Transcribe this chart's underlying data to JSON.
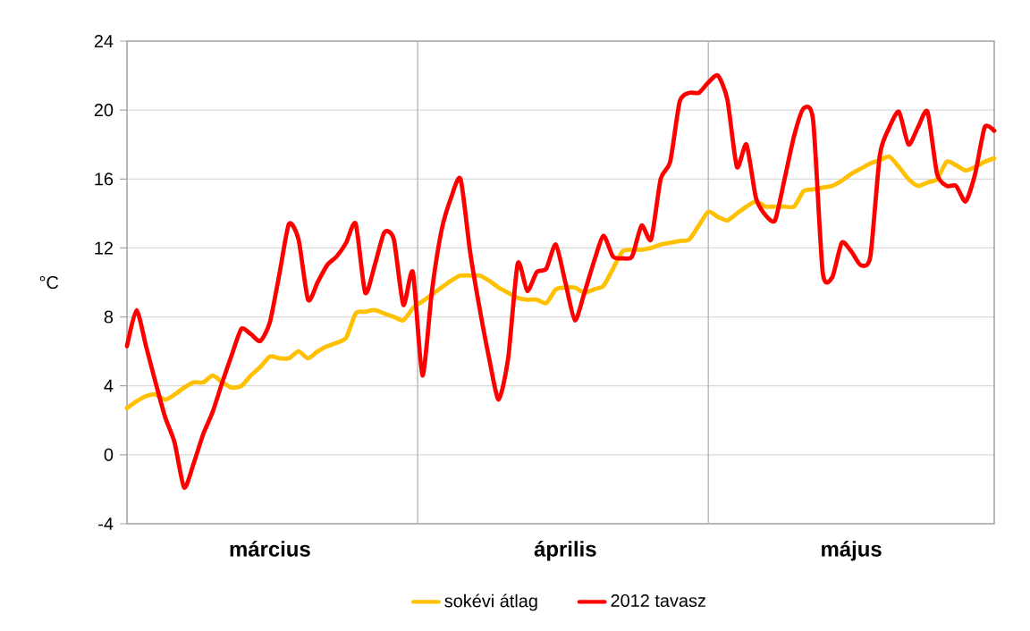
{
  "chart_data": {
    "type": "line",
    "ylabel": "°C",
    "ylim": [
      -4,
      24
    ],
    "yticks": [
      -4,
      0,
      4,
      8,
      12,
      16,
      20,
      24
    ],
    "categories": [
      null,
      null,
      null,
      null,
      null,
      null,
      null,
      null,
      null,
      null,
      null,
      null,
      null,
      null,
      null,
      "március",
      null,
      null,
      null,
      null,
      null,
      null,
      null,
      null,
      null,
      null,
      null,
      null,
      null,
      null,
      null,
      null,
      null,
      null,
      null,
      null,
      null,
      null,
      null,
      null,
      null,
      null,
      null,
      null,
      null,
      null,
      "április",
      null,
      null,
      null,
      null,
      null,
      null,
      null,
      null,
      null,
      null,
      null,
      null,
      null,
      null,
      null,
      null,
      null,
      null,
      null,
      null,
      null,
      null,
      null,
      null,
      null,
      null,
      null,
      null,
      null,
      "május",
      null,
      null,
      null,
      null,
      null,
      null,
      null,
      null,
      null,
      null,
      null,
      null,
      null,
      null,
      null
    ],
    "grid": "y",
    "legend": "bottom",
    "marker": "none",
    "line_style": "solid",
    "series": [
      {
        "name": "sokévi átlag",
        "color": "#ffc000",
        "values": [
          2.7,
          3.1,
          3.4,
          3.5,
          3.2,
          3.5,
          3.9,
          4.2,
          4.2,
          4.6,
          4.2,
          3.9,
          4.0,
          4.6,
          5.1,
          5.7,
          5.6,
          5.6,
          6.0,
          5.6,
          6.0,
          6.3,
          6.5,
          6.8,
          8.2,
          8.3,
          8.4,
          8.2,
          8.0,
          7.8,
          8.5,
          8.9,
          9.3,
          9.7,
          10.1,
          10.4,
          10.4,
          10.4,
          10.1,
          9.7,
          9.4,
          9.1,
          9.0,
          9.0,
          8.8,
          9.6,
          9.7,
          9.7,
          9.4,
          9.6,
          9.8,
          10.8,
          11.8,
          11.9,
          11.9,
          12.0,
          12.2,
          12.3,
          12.4,
          12.5,
          13.3,
          14.1,
          13.8,
          13.6,
          14.0,
          14.4,
          14.7,
          14.4,
          14.4,
          14.4,
          14.4,
          15.3,
          15.4,
          15.5,
          15.6,
          15.9,
          16.3,
          16.6,
          16.9,
          17.1,
          17.3,
          16.7,
          16.0,
          15.6,
          15.8,
          16.0,
          17.0,
          16.8,
          16.5,
          16.7,
          17.0,
          17.2
        ]
      },
      {
        "name": "2012 tavasz",
        "color": "#ff0000",
        "values": [
          6.3,
          8.4,
          6.3,
          4.2,
          2.2,
          0.7,
          -1.9,
          -0.5,
          1.2,
          2.5,
          4.2,
          5.8,
          7.3,
          7.0,
          6.6,
          7.7,
          10.5,
          13.4,
          12.5,
          9.0,
          10.0,
          11.0,
          11.5,
          12.3,
          13.4,
          9.4,
          11.0,
          12.9,
          12.5,
          8.7,
          10.6,
          4.6,
          9.5,
          13.0,
          14.9,
          16.0,
          11.8,
          8.5,
          5.6,
          3.2,
          5.6,
          11.1,
          9.5,
          10.6,
          10.8,
          12.2,
          10.0,
          7.8,
          9.4,
          11.2,
          12.7,
          11.5,
          11.4,
          11.5,
          13.3,
          12.5,
          16.0,
          17.0,
          20.5,
          21.0,
          21.0,
          21.6,
          22.0,
          20.6,
          16.7,
          18.0,
          14.9,
          13.9,
          13.6,
          16.0,
          18.5,
          20.1,
          19.4,
          10.6,
          10.3,
          12.3,
          11.8,
          11.0,
          11.5,
          17.4,
          19.0,
          19.9,
          18.0,
          19.0,
          19.9,
          16.3,
          15.6,
          15.6,
          14.7,
          16.3,
          19.0,
          18.8
        ]
      }
    ]
  }
}
